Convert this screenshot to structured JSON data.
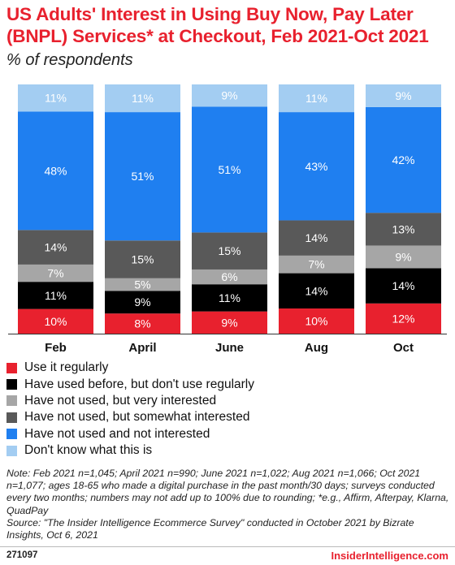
{
  "header": {
    "title": "US Adults' Interest in Using Buy Now, Pay Later (BNPL) Services* at Checkout, Feb 2021-Oct 2021",
    "subtitle": "% of respondents"
  },
  "chart_data": {
    "type": "bar",
    "stacked": true,
    "categories": [
      "Feb",
      "April",
      "June",
      "Aug",
      "Oct"
    ],
    "series": [
      {
        "name": "Use it regularly",
        "color": "#e8212e",
        "values": [
          10,
          8,
          9,
          10,
          12
        ]
      },
      {
        "name": "Have used before, but don't use regularly",
        "color": "#000000",
        "values": [
          11,
          9,
          11,
          14,
          14
        ]
      },
      {
        "name": "Have not used, but very interested",
        "color": "#a6a6a6",
        "values": [
          7,
          5,
          6,
          7,
          9
        ]
      },
      {
        "name": "Have not used, but somewhat interested",
        "color": "#595959",
        "values": [
          14,
          15,
          15,
          14,
          13
        ]
      },
      {
        "name": "Have not used and not interested",
        "color": "#1f7ff0",
        "values": [
          48,
          51,
          51,
          43,
          42
        ]
      },
      {
        "name": "Don't know what this is",
        "color": "#a3cdf2",
        "values": [
          11,
          11,
          9,
          11,
          9
        ]
      }
    ],
    "value_suffix": "%",
    "ylim": [
      0,
      100
    ]
  },
  "footnote": "Note: Feb 2021 n=1,045; April 2021 n=990; June 2021 n=1,022; Aug 2021 n=1,066; Oct 2021 n=1,077; ages 18-65 who made a digital purchase in the past month/30 days; surveys conducted every two months; numbers may not add up to 100% due to rounding; *e.g., Affirm, Afterpay, Klarna, QuadPay\nSource: \"The Insider Intelligence Ecommerce Survey\" conducted in October 2021 by Bizrate Insights, Oct 6, 2021",
  "footer": {
    "chart_id": "271097",
    "brand": "InsiderIntelligence.com"
  }
}
